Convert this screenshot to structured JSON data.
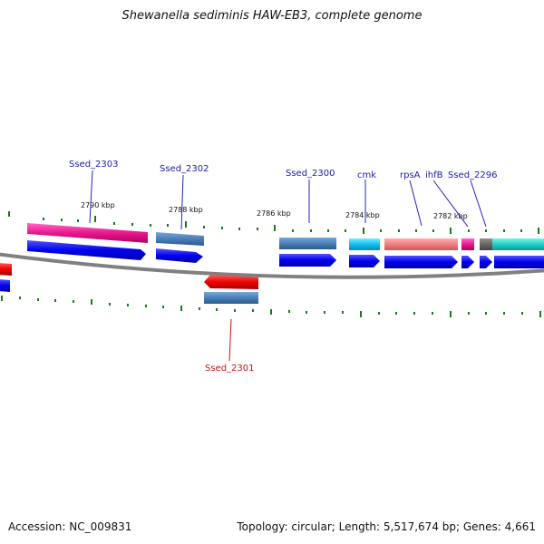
{
  "title": "Shewanella sediminis HAW-EB3, complete genome",
  "footer": {
    "accession": "Accession: NC_009831",
    "summary": "Topology: circular; Length: 5,517,674 bp; Genes: 4,661"
  },
  "scale_ticks": [
    {
      "label": "2790 kbp"
    },
    {
      "label": "2788 kbp"
    },
    {
      "label": "2786 kbp"
    },
    {
      "label": "2784 kbp"
    },
    {
      "label": "2782 kbp"
    }
  ],
  "gene_labels": [
    {
      "id": "ssed-2303",
      "text": "Ssed_2303",
      "strand": "plus"
    },
    {
      "id": "ssed-2302",
      "text": "Ssed_2302",
      "strand": "plus"
    },
    {
      "id": "ssed-2300",
      "text": "Ssed_2300",
      "strand": "plus"
    },
    {
      "id": "cmk",
      "text": "cmk",
      "strand": "plus"
    },
    {
      "id": "rpsa",
      "text": "rpsA",
      "strand": "plus"
    },
    {
      "id": "ihfb",
      "text": "ihfB",
      "strand": "plus"
    },
    {
      "id": "ssed-2296",
      "text": "Ssed_2296",
      "strand": "plus"
    },
    {
      "id": "ssed-2301",
      "text": "Ssed_2301",
      "strand": "minus"
    }
  ],
  "colors": {
    "plus_label": "#1a1aaa",
    "minus_label": "#cc1111",
    "cds_arrow": "#0000ee",
    "backbone": "#808080",
    "tick": "#1a7a1a"
  }
}
